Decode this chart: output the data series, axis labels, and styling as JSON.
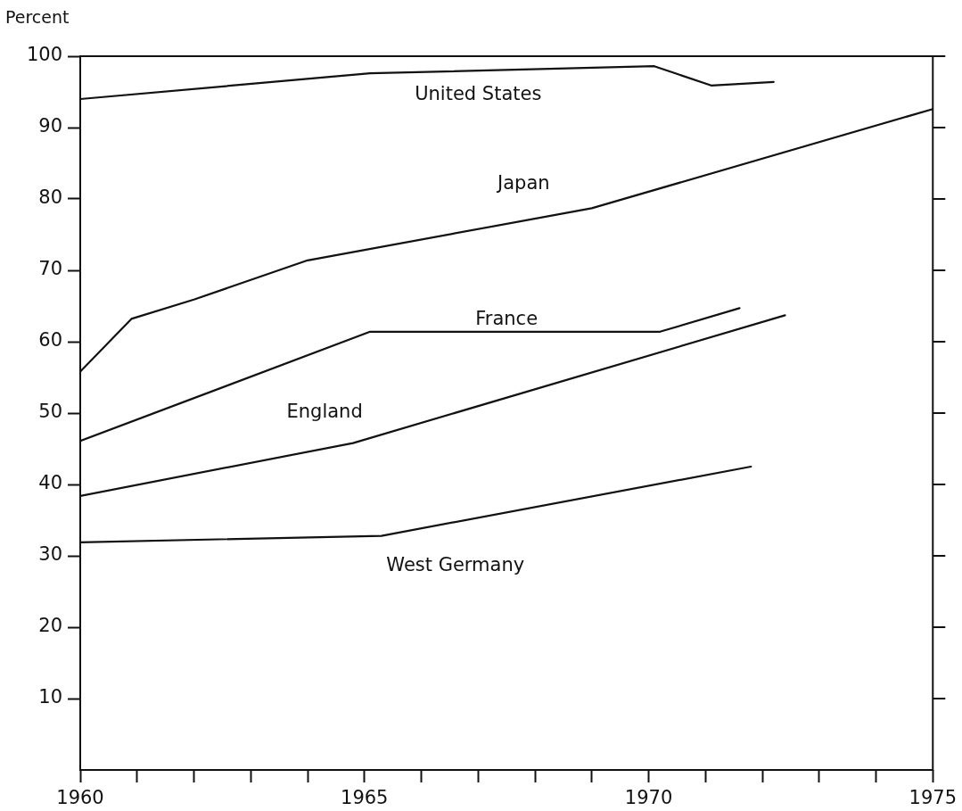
{
  "chart_data": {
    "type": "line",
    "ylabel": "Percent",
    "xlim": [
      1960,
      1975
    ],
    "ylim": [
      0,
      100
    ],
    "xticks": [
      1960,
      {
        "value": 1961,
        "label": null
      },
      {
        "value": 1962,
        "label": null
      },
      {
        "value": 1963,
        "label": null
      },
      {
        "value": 1964,
        "label": null
      },
      1965,
      {
        "value": 1966,
        "label": null
      },
      {
        "value": 1967,
        "label": null
      },
      {
        "value": 1968,
        "label": null
      },
      {
        "value": 1969,
        "label": null
      },
      1970,
      {
        "value": 1971,
        "label": null
      },
      {
        "value": 1972,
        "label": null
      },
      {
        "value": 1973,
        "label": null
      },
      {
        "value": 1974,
        "label": null
      },
      1975
    ],
    "yticks": [
      10,
      20,
      30,
      40,
      50,
      60,
      70,
      80,
      90,
      100
    ],
    "grid": false,
    "legend": false,
    "marker": "none",
    "line_style": "solid",
    "series": [
      {
        "name": "United States",
        "color": "#111111",
        "x": [
          1960,
          1965.1,
          1970.1,
          1971.1,
          1972.2
        ],
        "values": [
          94,
          97.6,
          98.6,
          95.9,
          96.4
        ]
      },
      {
        "name": "Japan",
        "color": "#111111",
        "x": [
          1960,
          1960.9,
          1962,
          1964,
          1969,
          1975
        ],
        "values": [
          55.8,
          63.2,
          65.9,
          71.4,
          78.7,
          92.6
        ]
      },
      {
        "name": "France",
        "color": "#111111",
        "x": [
          1960,
          1965.1,
          1970.2,
          1971.6
        ],
        "values": [
          46.1,
          61.4,
          61.4,
          64.7
        ]
      },
      {
        "name": "England",
        "color": "#111111",
        "x": [
          1960,
          1964.8,
          1972.4
        ],
        "values": [
          38.4,
          45.8,
          63.7
        ]
      },
      {
        "name": "West Germany",
        "color": "#111111",
        "x": [
          1960,
          1965.3,
          1971.8
        ],
        "values": [
          31.9,
          32.8,
          42.5
        ]
      }
    ]
  }
}
